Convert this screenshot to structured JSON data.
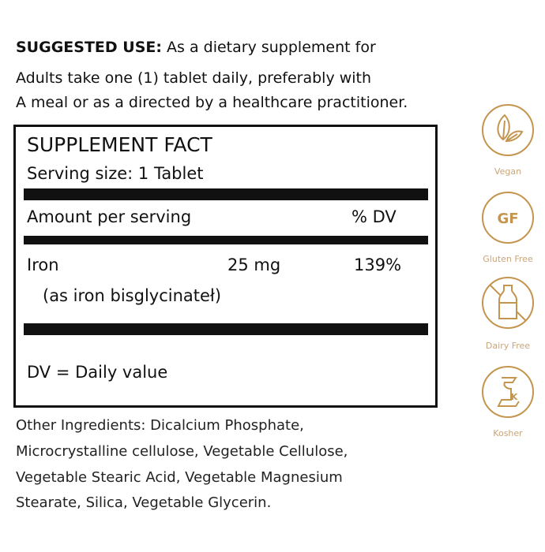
{
  "suggested_use": {
    "heading": "SUGGESTED USE:",
    "line1": "As a dietary supplement for",
    "line2": "Adults take one (1) tablet daily, preferably with",
    "line3": "A meal or as a directed by a healthcare practitioner."
  },
  "facts": {
    "title": "SUPPLEMENT FACT",
    "serving_size": "Serving size: 1 Tablet",
    "amount_header": "Amount per serving",
    "dv_header": "% DV",
    "rows": [
      {
        "name": "Iron",
        "amount": "25 mg",
        "dv": "139%",
        "source": "(as iron bisglycinateł)"
      }
    ],
    "footnote": "DV = Daily value"
  },
  "other_ingredients": [
    "Other Ingredients: Dicalcium Phosphate,",
    "Microcrystalline cellulose, Vegetable Cellulose,",
    "Vegetable Stearic Acid, Vegetable Magnesium",
    "Stearate, Silica, Vegetable Glycerin."
  ],
  "badges": [
    {
      "icon": "leaf-icon",
      "label": "Vegan"
    },
    {
      "icon": "gf-icon",
      "label": "Gluten Free",
      "glyph": "GF"
    },
    {
      "icon": "no-milk-bottle-icon",
      "label": "Dairy Free"
    },
    {
      "icon": "kosher-icon",
      "label": "Kosher",
      "glyph": "K"
    }
  ],
  "colors": {
    "badge": "#c4954f",
    "text": "#111111"
  }
}
